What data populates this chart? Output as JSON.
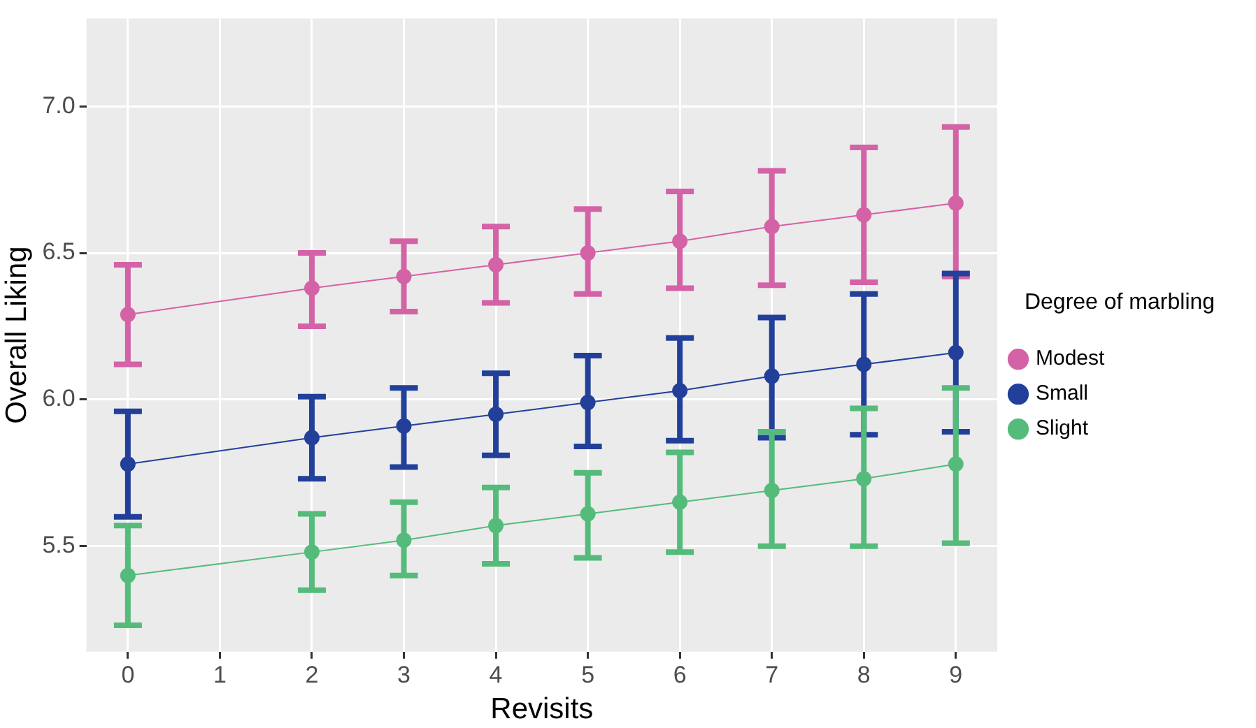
{
  "chart_data": {
    "type": "line",
    "xlabel": "Revisits",
    "ylabel": "Overall Liking",
    "legend_title": "Degree of marbling",
    "x": [
      0,
      2,
      3,
      4,
      5,
      6,
      7,
      8,
      9
    ],
    "xlim": [
      -0.45,
      9.45
    ],
    "xticks": [
      0,
      1,
      2,
      3,
      4,
      5,
      6,
      7,
      8,
      9
    ],
    "ylim": [
      5.14,
      7.3
    ],
    "yticks": [
      5.5,
      {
        "value": 6,
        "label": "6.0"
      },
      6.5,
      {
        "value": 7,
        "label": "7.0"
      }
    ],
    "grid": true,
    "legend": "right",
    "marker": "circle",
    "line_style": "solid",
    "series": [
      {
        "name": "Modest",
        "color": "#d462a6",
        "values": [
          6.29,
          6.38,
          6.42,
          6.46,
          6.5,
          6.54,
          6.59,
          6.63,
          6.67
        ],
        "errors": [
          [
            6.12,
            6.46
          ],
          [
            6.25,
            6.5
          ],
          [
            6.3,
            6.54
          ],
          [
            6.33,
            6.59
          ],
          [
            6.36,
            6.65
          ],
          [
            6.38,
            6.71
          ],
          [
            6.39,
            6.78
          ],
          [
            6.4,
            6.86
          ],
          [
            6.42,
            6.93
          ]
        ]
      },
      {
        "name": "Small",
        "color": "#22409a",
        "values": [
          5.78,
          5.87,
          5.91,
          5.95,
          5.99,
          6.03,
          6.08,
          6.12,
          6.16
        ],
        "errors": [
          [
            5.6,
            5.96
          ],
          [
            5.73,
            6.01
          ],
          [
            5.77,
            6.04
          ],
          [
            5.81,
            6.09
          ],
          [
            5.84,
            6.15
          ],
          [
            5.86,
            6.21
          ],
          [
            5.87,
            6.28
          ],
          [
            5.88,
            6.36
          ],
          [
            5.89,
            6.43
          ]
        ]
      },
      {
        "name": "Slight",
        "color": "#55bb7b",
        "values": [
          5.4,
          5.48,
          5.52,
          5.57,
          5.61,
          5.65,
          5.69,
          5.73,
          5.78
        ],
        "errors": [
          [
            5.23,
            5.57
          ],
          [
            5.35,
            5.61
          ],
          [
            5.4,
            5.65
          ],
          [
            5.44,
            5.7
          ],
          [
            5.46,
            5.75
          ],
          [
            5.48,
            5.82
          ],
          [
            5.5,
            5.89
          ],
          [
            5.5,
            5.97
          ],
          [
            5.51,
            6.04
          ]
        ]
      }
    ]
  }
}
